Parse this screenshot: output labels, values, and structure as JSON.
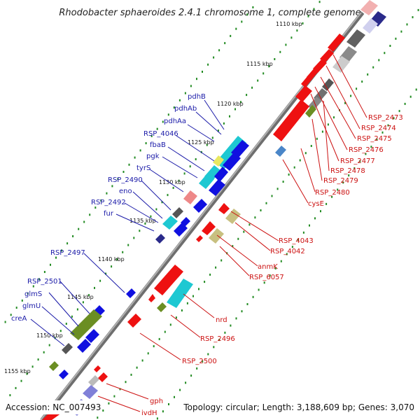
{
  "title": "Rhodobacter sphaeroides 2.4.1 chromosome 1, complete genome",
  "footer": {
    "accession": "Accession: NC_007493",
    "info": "Topology: circular; Length: 3,188,609 bp; Genes: 3,070"
  },
  "scale_labels": [
    "1110 kbp",
    "1115 kbp",
    "1120 kbp",
    "1125 kbp",
    "1130 kbp",
    "1135 kbp",
    "1140 kbp",
    "1145 kbp",
    "1150 kbp",
    "1155 kbp"
  ],
  "left_labels": [
    "pdhB",
    "pdhAb",
    "pdhAa",
    "RSP_4046",
    "fbaB",
    "pgk",
    "tyrS",
    "RSP_2490",
    "eno",
    "RSP_2492",
    "fur",
    "RSP_2497",
    "RSP_2501",
    "glmS",
    "glmU",
    "creA"
  ],
  "right_labels": [
    "RSP_2473",
    "RSP_2474",
    "RSP_2475",
    "RSP_2476",
    "RSP_2477",
    "RSP_2478",
    "RSP_2479",
    "RSP_2480",
    "cysE",
    "RSP_4043",
    "RSP_4042",
    "anmK",
    "RSP_6057",
    "nrd",
    "RSP_2496",
    "RSP_2500",
    "gph",
    "ivdH"
  ],
  "colors": {
    "backbone": "#8c8c8c",
    "tick": "#228b22",
    "left_label": "#1a1aa8",
    "right_label": "#cc1111",
    "gene_blue": "#1010e0",
    "gene_red": "#ee1111",
    "gene_cyan": "#1ec8d2",
    "gene_olive": "#6b8e23",
    "gene_grey": "#555555"
  }
}
